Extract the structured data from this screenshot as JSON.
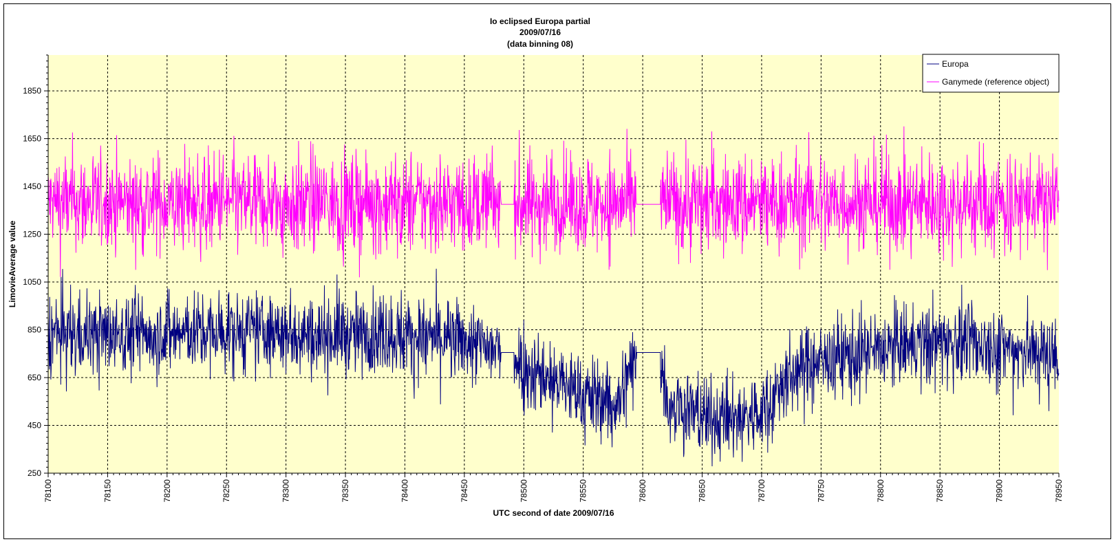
{
  "chart_data": {
    "type": "line",
    "title": [
      "Io eclipsed Europa partial",
      "2009/07/16",
      "(data binning 08)"
    ],
    "xlabel": "UTC second of date 2009/07/16",
    "ylabel": "LimovieAverage value",
    "xlim": [
      78100,
      78950
    ],
    "ylim": [
      250,
      2000
    ],
    "x_ticks": [
      78100,
      78150,
      78200,
      78250,
      78300,
      78350,
      78400,
      78450,
      78500,
      78550,
      78600,
      78650,
      78700,
      78750,
      78800,
      78850,
      78900,
      78950
    ],
    "y_ticks": [
      250,
      450,
      650,
      850,
      1050,
      1250,
      1450,
      1650,
      1850
    ],
    "grid": true,
    "plot_background": "#ffffcc",
    "legend_position": "top-right",
    "series": [
      {
        "name": "Europa",
        "color": "#000080",
        "profile_x": [
          78100,
          78200,
          78300,
          78350,
          78400,
          78450,
          78475,
          78490,
          78500,
          78520,
          78540,
          78560,
          78580,
          78595,
          78615,
          78620,
          78640,
          78660,
          78680,
          78700,
          78720,
          78740,
          78760,
          78800,
          78850,
          78900,
          78950
        ],
        "profile_mean": [
          830,
          835,
          840,
          830,
          830,
          800,
          760,
          760,
          700,
          650,
          600,
          560,
          540,
          760,
          760,
          560,
          510,
          470,
          480,
          500,
          640,
          700,
          730,
          760,
          800,
          780,
          740
        ],
        "spread": 110,
        "flat_segments": [
          {
            "x": [
              78481,
              78492
            ],
            "value": 755
          },
          {
            "x": [
              78595,
              78615
            ],
            "value": 755
          }
        ]
      },
      {
        "name": "Ganymede (reference object)",
        "color": "#ff00ff",
        "profile_x": [
          78100,
          78950
        ],
        "profile_mean": [
          1380,
          1380
        ],
        "spread": 130,
        "flat_segments": [
          {
            "x": [
              78481,
              78492
            ],
            "value": 1375
          },
          {
            "x": [
              78595,
              78615
            ],
            "value": 1375
          }
        ]
      }
    ],
    "sample_step_seconds": 0.32
  }
}
